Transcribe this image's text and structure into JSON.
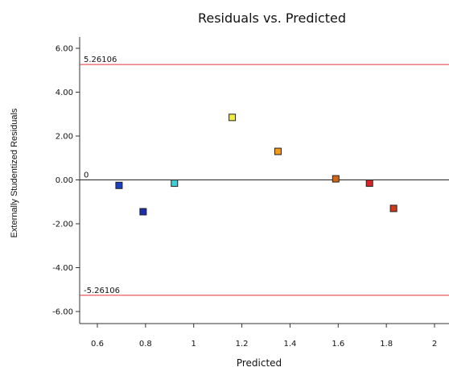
{
  "chart_data": {
    "type": "scatter",
    "title": "Residuals vs. Predicted",
    "xlabel": "Predicted",
    "ylabel": "Externally Studentized Residuals",
    "xlim": [
      0.5,
      2.05
    ],
    "ylim": [
      -7.0,
      6.6
    ],
    "x_ticks": [
      {
        "value": 0.6,
        "label": "0.6"
      },
      {
        "value": 0.8,
        "label": "0.8"
      },
      {
        "value": 1.0,
        "label": "1"
      },
      {
        "value": 1.2,
        "label": "1.2"
      },
      {
        "value": 1.4,
        "label": "1.4"
      },
      {
        "value": 1.6,
        "label": "1.6"
      },
      {
        "value": 1.8,
        "label": "1.8"
      },
      {
        "value": 2.0,
        "label": "2"
      }
    ],
    "y_ticks": [
      {
        "value": 6,
        "label": "6.00"
      },
      {
        "value": 4,
        "label": "4.00"
      },
      {
        "value": 2,
        "label": "2.00"
      },
      {
        "value": 0,
        "label": "0.00"
      },
      {
        "value": -2,
        "label": "-2.00"
      },
      {
        "value": -4,
        "label": "-4.00"
      },
      {
        "value": -6,
        "label": "-6.00"
      }
    ],
    "reference_lines": [
      {
        "y": 5.26106,
        "label": "5.26106",
        "color": "#e8313a"
      },
      {
        "y": 0,
        "label": "0",
        "color": "#222222"
      },
      {
        "y": -5.26106,
        "label": "-5.26106",
        "color": "#e8313a"
      }
    ],
    "points": [
      {
        "x": 0.69,
        "y": -0.25,
        "color": "#1d3fbf"
      },
      {
        "x": 0.79,
        "y": -1.45,
        "color": "#1a2fa8"
      },
      {
        "x": 0.92,
        "y": -0.15,
        "color": "#3ecfd6"
      },
      {
        "x": 1.16,
        "y": 2.85,
        "color": "#f2ec3a"
      },
      {
        "x": 1.35,
        "y": 1.3,
        "color": "#f29a1e"
      },
      {
        "x": 1.59,
        "y": 0.05,
        "color": "#d0661a"
      },
      {
        "x": 1.73,
        "y": -0.15,
        "color": "#d4262a"
      },
      {
        "x": 1.83,
        "y": -1.3,
        "color": "#cc3a1c"
      }
    ],
    "grid": false
  }
}
